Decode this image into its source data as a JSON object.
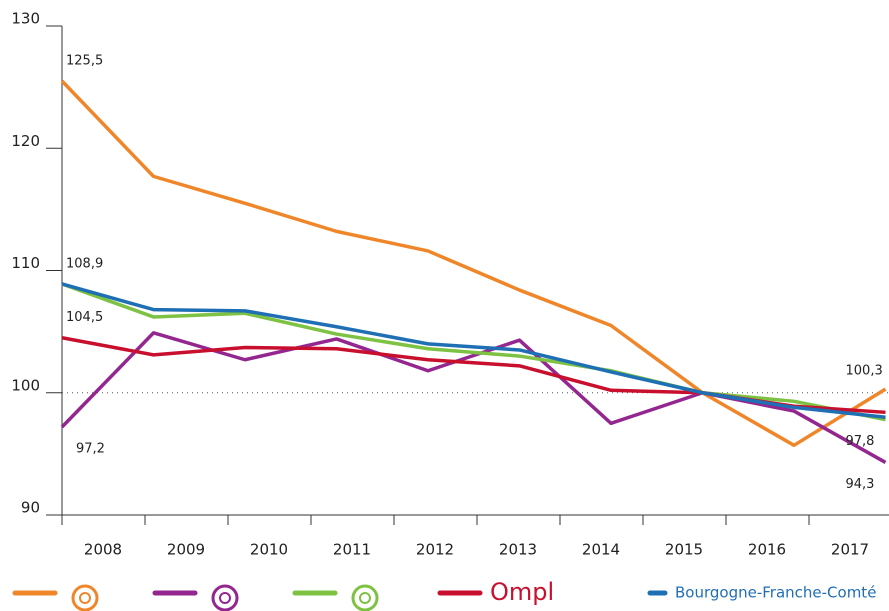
{
  "chart_data": {
    "type": "line",
    "categories": [
      "2008",
      "2009",
      "2010",
      "2011",
      "2012",
      "2013",
      "2014",
      "2015",
      "2016",
      "2017"
    ],
    "series": [
      {
        "name": null,
        "color": "#f0862a",
        "values": [
          125.5,
          117.7,
          115.5,
          113.2,
          111.6,
          108.4,
          105.5,
          100,
          95.7,
          100.3
        ],
        "value_labels": [
          "125,5",
          null,
          null,
          null,
          null,
          null,
          null,
          null,
          null,
          "100,3"
        ]
      },
      {
        "name": null,
        "color": "#93278f",
        "values": [
          97.2,
          104.9,
          102.7,
          104.4,
          101.8,
          104.3,
          97.5,
          100,
          98.5,
          94.3
        ],
        "value_labels": [
          "97,2",
          null,
          null,
          null,
          null,
          null,
          null,
          null,
          null,
          "94,3"
        ]
      },
      {
        "name": null,
        "color": "#7dc243",
        "values": [
          108.9,
          106.2,
          106.5,
          104.8,
          103.6,
          103.0,
          101.8,
          100,
          99.3,
          97.8
        ],
        "value_labels": [
          null,
          null,
          null,
          null,
          null,
          null,
          null,
          null,
          null,
          "97,8"
        ]
      },
      {
        "name": "Ompl",
        "color": "#c8102e",
        "values": [
          104.5,
          103.1,
          103.7,
          103.6,
          102.7,
          102.2,
          100.2,
          100,
          98.9,
          98.4
        ],
        "value_labels": [
          "104,5",
          null,
          null,
          null,
          null,
          null,
          null,
          null,
          null,
          null
        ]
      },
      {
        "name": "Bourgogne-Franche-Comté",
        "color": "#1f6fb5",
        "values": [
          108.9,
          106.8,
          106.7,
          105.4,
          104.0,
          103.5,
          101.7,
          100,
          98.8,
          98.0
        ],
        "value_labels": [
          "108,9",
          null,
          null,
          null,
          null,
          null,
          null,
          null,
          null,
          null
        ]
      }
    ],
    "ylim": [
      90,
      130
    ],
    "yticks": [
      90,
      100,
      110,
      120,
      130
    ],
    "reference_line": 100
  }
}
